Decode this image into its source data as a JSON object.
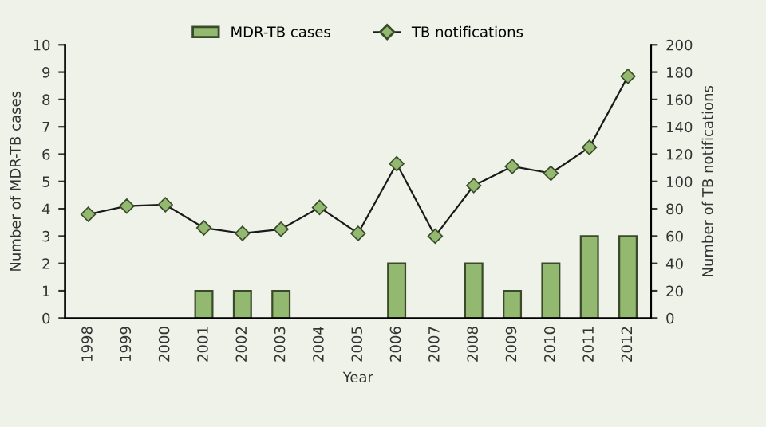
{
  "chart_data": {
    "type": "bar",
    "xlabel": "Year",
    "ylabel": "Number of MDR-TB cases",
    "y2label": "Number of TB notifications",
    "categories": [
      "1998",
      "1999",
      "2000",
      "2001",
      "2002",
      "2003",
      "2004",
      "2005",
      "2006",
      "2007",
      "2008",
      "2009",
      "2010",
      "2011",
      "2012"
    ],
    "series": [
      {
        "name": "MDR-TB cases",
        "color": "#93b86f",
        "values": [
          0,
          0,
          0,
          1,
          1,
          1,
          0,
          0,
          2,
          0,
          2,
          1,
          2,
          3,
          3
        ]
      },
      {
        "name": "TB notifications",
        "type": "line",
        "axis": "y2",
        "color": "#1a1a1a",
        "marker": "diamond",
        "values": [
          76,
          82,
          83,
          66,
          62,
          65,
          81,
          62,
          113,
          60,
          97,
          111,
          106,
          125,
          177
        ]
      }
    ],
    "ylim": [
      0,
      10
    ],
    "yticks": [
      0,
      1,
      2,
      3,
      4,
      5,
      6,
      7,
      8,
      9,
      10
    ],
    "y2lim": [
      0,
      200
    ],
    "y2ticks": [
      0,
      20,
      40,
      60,
      80,
      100,
      120,
      140,
      160,
      180,
      200
    ],
    "grid": false,
    "legend": "top"
  }
}
